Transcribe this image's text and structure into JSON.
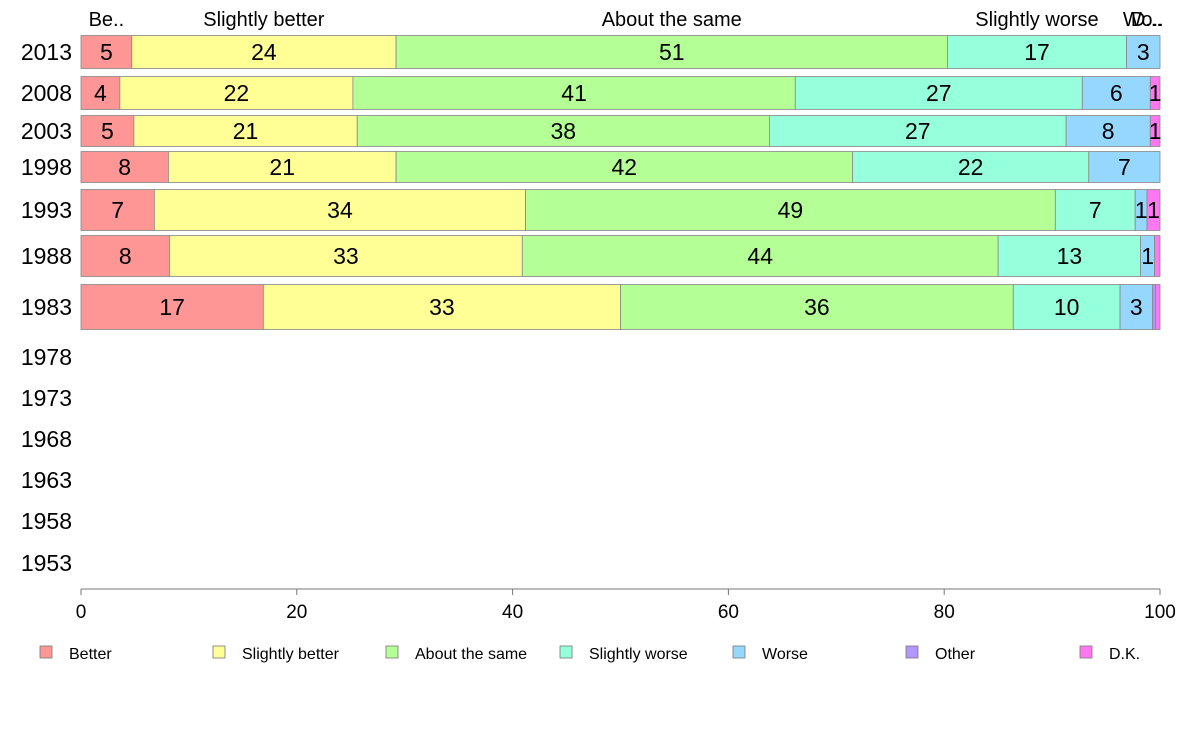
{
  "chart_data": {
    "type": "bar",
    "orientation": "horizontal",
    "stacked": true,
    "xlim": [
      0,
      100
    ],
    "x_ticks": [
      "0",
      "20",
      "40",
      "60",
      "80",
      "100"
    ],
    "categories": [
      "2013",
      "2008",
      "2003",
      "1998",
      "1993",
      "1988",
      "1983",
      "1978",
      "1973",
      "1968",
      "1963",
      "1958",
      "1953"
    ],
    "top_labels": [
      "Be..",
      "Slightly better",
      "About the same",
      "Slightly worse",
      "Wo..",
      "D..."
    ],
    "series": [
      {
        "name": "Better",
        "color": "#ff9696",
        "values": [
          4.7,
          3.6,
          4.9,
          8.1,
          6.8,
          8.2,
          16.9,
          null,
          null,
          null,
          null,
          null,
          null
        ]
      },
      {
        "name": "Slightly better",
        "color": "#ffff96",
        "values": [
          24.5,
          21.6,
          20.7,
          21.1,
          34.4,
          32.7,
          33.1,
          null,
          null,
          null,
          null,
          null,
          null
        ]
      },
      {
        "name": "About the same",
        "color": "#b4ff96",
        "values": [
          51.1,
          41.0,
          38.2,
          42.3,
          49.1,
          44.1,
          36.4,
          null,
          null,
          null,
          null,
          null,
          null
        ]
      },
      {
        "name": "Slightly worse",
        "color": "#96ffdc",
        "values": [
          16.6,
          26.6,
          27.5,
          21.9,
          7.4,
          13.2,
          9.9,
          null,
          null,
          null,
          null,
          null,
          null
        ]
      },
      {
        "name": "Worse",
        "color": "#96d7ff",
        "values": [
          3.1,
          6.3,
          7.8,
          6.6,
          1.1,
          1.3,
          3.0,
          null,
          null,
          null,
          null,
          null,
          null
        ]
      },
      {
        "name": "Other",
        "color": "#b496ff",
        "values": [
          0,
          0,
          0,
          0,
          0,
          0,
          0.3,
          null,
          null,
          null,
          null,
          null,
          null
        ]
      },
      {
        "name": "D.K.",
        "color": "#ff78f0",
        "values": [
          0,
          0.9,
          0.9,
          0,
          1.2,
          0.5,
          0.4,
          null,
          null,
          null,
          null,
          null,
          null
        ]
      }
    ],
    "data_labels": [
      [
        "5",
        "24",
        "51",
        "17",
        "3",
        "",
        ""
      ],
      [
        "4",
        "22",
        "41",
        "27",
        "6",
        "",
        "1"
      ],
      [
        "5",
        "21",
        "38",
        "27",
        "8",
        "",
        "1"
      ],
      [
        "8",
        "21",
        "42",
        "22",
        "7",
        "",
        ""
      ],
      [
        "7",
        "34",
        "49",
        "7",
        "1",
        "",
        "1"
      ],
      [
        "8",
        "33",
        "44",
        "13",
        "1",
        "",
        ""
      ],
      [
        "17",
        "33",
        "36",
        "10",
        "3",
        "",
        ""
      ]
    ],
    "legend": [
      "Better",
      "Slightly better",
      "About the same",
      "Slightly worse",
      "Worse",
      "Other",
      "D.K."
    ],
    "legend_position": "bottom",
    "grid": false
  }
}
